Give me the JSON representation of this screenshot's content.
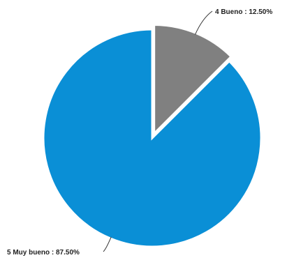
{
  "chart_data": {
    "type": "pie",
    "slices": [
      {
        "label": "4 Bueno",
        "value": 12.5,
        "display": "4 Bueno : 12.50%",
        "color": "#808080",
        "exploded": true
      },
      {
        "label": "5 Muy bueno",
        "value": 87.5,
        "display": "5 Muy bueno : 87.50%",
        "color": "#0a8fd6",
        "exploded": false
      }
    ],
    "start_angle_deg": 0,
    "direction": "clockwise",
    "legend": "none"
  }
}
